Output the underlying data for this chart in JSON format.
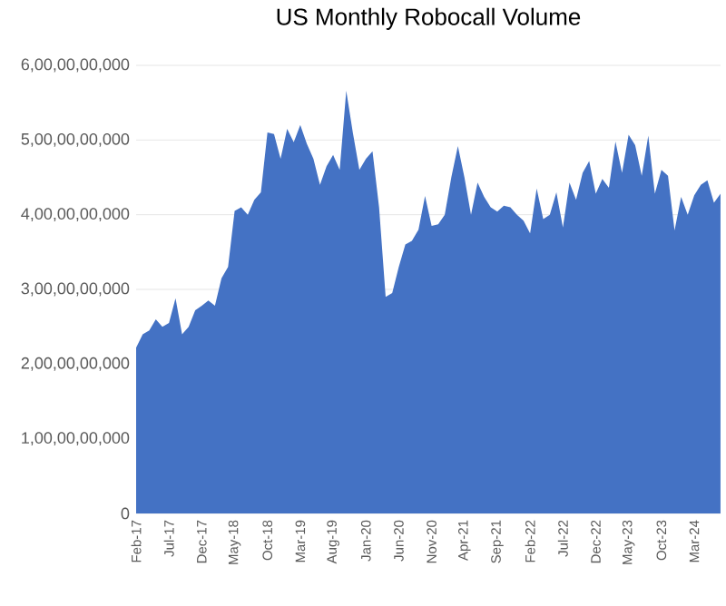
{
  "chart_data": {
    "type": "area",
    "title": "US Monthly Robocall Volume",
    "categories": [
      "Feb-17",
      null,
      null,
      null,
      null,
      "Jul-17",
      null,
      null,
      null,
      null,
      "Dec-17",
      null,
      null,
      null,
      null,
      "May-18",
      null,
      null,
      null,
      null,
      "Oct-18",
      null,
      null,
      null,
      null,
      "Mar-19",
      null,
      null,
      null,
      null,
      "Aug-19",
      null,
      null,
      null,
      null,
      "Jan-20",
      null,
      null,
      null,
      null,
      "Jun-20",
      null,
      null,
      null,
      null,
      "Nov-20",
      null,
      null,
      null,
      null,
      "Apr-21",
      null,
      null,
      null,
      null,
      "Sep-21",
      null,
      null,
      null,
      null,
      "Feb-22",
      null,
      null,
      null,
      null,
      "Jul-22",
      null,
      null,
      null,
      null,
      "Dec-22",
      null,
      null,
      null,
      null,
      "May-23",
      null,
      null,
      null,
      null,
      "Oct-23",
      null,
      null,
      null,
      null,
      "Mar-24",
      null,
      null,
      null,
      null
    ],
    "values": [
      2220000000,
      2400000000,
      2450000000,
      2600000000,
      2500000000,
      2550000000,
      2880000000,
      2400000000,
      2500000000,
      2720000000,
      2780000000,
      2850000000,
      2780000000,
      3150000000,
      3300000000,
      4050000000,
      4100000000,
      4000000000,
      4200000000,
      4300000000,
      5100000000,
      5080000000,
      4750000000,
      5150000000,
      4970000000,
      5200000000,
      4950000000,
      4750000000,
      4400000000,
      4650000000,
      4800000000,
      4600000000,
      5660000000,
      5100000000,
      4600000000,
      4750000000,
      4850000000,
      4100000000,
      2900000000,
      2950000000,
      3300000000,
      3600000000,
      3650000000,
      3800000000,
      4250000000,
      3850000000,
      3870000000,
      4000000000,
      4500000000,
      4920000000,
      4500000000,
      4000000000,
      4430000000,
      4240000000,
      4100000000,
      4040000000,
      4120000000,
      4100000000,
      4000000000,
      3920000000,
      3750000000,
      4350000000,
      3940000000,
      4000000000,
      4300000000,
      3830000000,
      4430000000,
      4200000000,
      4560000000,
      4720000000,
      4280000000,
      4480000000,
      4360000000,
      4980000000,
      4560000000,
      5070000000,
      4930000000,
      4520000000,
      5060000000,
      4280000000,
      4600000000,
      4520000000,
      3790000000,
      4240000000,
      4000000000,
      4260000000,
      4400000000,
      4460000000,
      4160000000,
      4280000000
    ],
    "color": "#4472c4",
    "ylim": [
      0,
      6000000000
    ],
    "yticks": [
      0,
      {
        "value": 1000000000,
        "label": "1,00,00,00,000"
      },
      {
        "value": 2000000000,
        "label": "2,00,00,00,000"
      },
      {
        "value": 3000000000,
        "label": "3,00,00,00,000"
      },
      {
        "value": 4000000000,
        "label": "4,00,00,00,000"
      },
      {
        "value": 5000000000,
        "label": "5,00,00,00,000"
      },
      {
        "value": 6000000000,
        "label": "6,00,00,00,000"
      }
    ],
    "grid": "y"
  }
}
